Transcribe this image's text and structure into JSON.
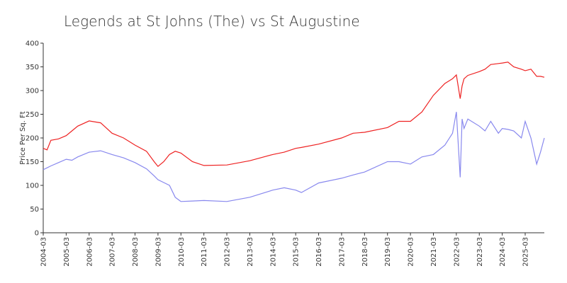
{
  "chart_data": {
    "type": "line",
    "title": "Legends at St Johns (The) vs St Augustine",
    "y_label": "Price Per Sq. Ft",
    "x": [
      "2004-03",
      "2004-05",
      "2004-07",
      "2004-11",
      "2005-03",
      "2005-06",
      "2005-09",
      "2006-03",
      "2006-09",
      "2007-03",
      "2007-09",
      "2008-03",
      "2008-09",
      "2009-01",
      "2009-03",
      "2009-06",
      "2009-09",
      "2009-12",
      "2010-03",
      "2010-09",
      "2011-03",
      "2012-03",
      "2013-03",
      "2014-03",
      "2014-09",
      "2015-03",
      "2015-06",
      "2016-03",
      "2017-03",
      "2017-09",
      "2018-03",
      "2019-03",
      "2019-09",
      "2020-03",
      "2020-09",
      "2021-03",
      "2021-09",
      "2022-01",
      "2022-03",
      "2022-05",
      "2022-06",
      "2022-07",
      "2022-09",
      "2023-03",
      "2023-06",
      "2023-09",
      "2024-01",
      "2024-03",
      "2024-06",
      "2024-09",
      "2025-01",
      "2025-03",
      "2025-06",
      "2025-09",
      "2025-11",
      "2026-01"
    ],
    "series": [
      {
        "color": "#ee2222",
        "values": [
          178,
          175,
          195,
          198,
          205,
          215,
          225,
          236,
          232,
          210,
          200,
          185,
          172,
          150,
          140,
          150,
          165,
          172,
          168,
          150,
          142,
          143,
          152,
          165,
          170,
          178,
          180,
          187,
          200,
          210,
          212,
          222,
          235,
          235,
          255,
          290,
          315,
          325,
          333,
          283,
          310,
          325,
          332,
          340,
          345,
          355,
          357,
          358,
          360,
          350,
          345,
          342,
          345,
          330,
          330,
          328
        ]
      },
      {
        "color": "#8888ee",
        "values": [
          133,
          137,
          141,
          148,
          155,
          153,
          160,
          170,
          173,
          165,
          158,
          148,
          135,
          120,
          112,
          106,
          100,
          75,
          66,
          67,
          68,
          66,
          75,
          90,
          95,
          90,
          85,
          105,
          115,
          122,
          128,
          150,
          150,
          145,
          160,
          165,
          185,
          210,
          255,
          117,
          240,
          220,
          240,
          225,
          215,
          235,
          210,
          220,
          218,
          215,
          200,
          235,
          200,
          145,
          170,
          200
        ]
      }
    ],
    "xlim": [
      "2004-03",
      "2026-01"
    ],
    "xticks": [
      "2004-03",
      "2005-03",
      "2006-03",
      "2007-03",
      "2008-03",
      "2009-03",
      "2010-03",
      "2011-03",
      "2012-03",
      "2013-03",
      "2014-03",
      "2015-03",
      "2016-03",
      "2017-03",
      "2018-03",
      "2019-03",
      "2020-03",
      "2021-03",
      "2022-03",
      "2023-03",
      "2024-03",
      "2025-03"
    ],
    "ylim": [
      0,
      400
    ],
    "yticks": [
      0,
      50,
      100,
      150,
      200,
      250,
      300,
      350,
      400
    ],
    "grid": false
  }
}
